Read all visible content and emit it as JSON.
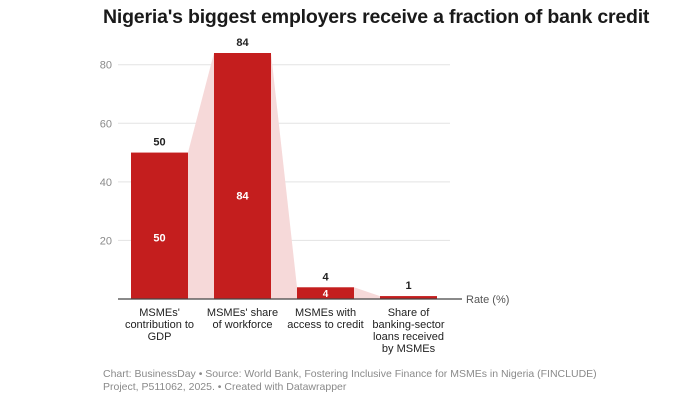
{
  "chart_data": {
    "type": "bar",
    "title": "Nigeria's biggest employers receive a fraction of bank credit",
    "categories": [
      [
        "MSMEs'",
        "contribution to",
        "GDP"
      ],
      [
        "MSMEs' share",
        "of workforce"
      ],
      [
        "MSMEs with",
        "access to credit"
      ],
      [
        "Share of",
        "banking-sector",
        "loans received",
        "by MSMEs"
      ]
    ],
    "values": [
      50,
      84,
      4,
      1
    ],
    "value_labels": [
      "50",
      "84",
      "4",
      "1"
    ],
    "ylabel": "",
    "ylim": [
      0,
      84
    ],
    "yticks": [
      20,
      40,
      60,
      80
    ],
    "axis_label": "Rate (%)",
    "grid": true,
    "colors": {
      "bar": "#c41e1e",
      "connector": "#f6d9d9",
      "grid": "#e3e3e3"
    }
  },
  "footer": "Chart: BusinessDay • Source: World Bank, Fostering Inclusive Finance for MSMEs in Nigeria (FINCLUDE) Project, P511062, 2025. • Created with Datawrapper"
}
